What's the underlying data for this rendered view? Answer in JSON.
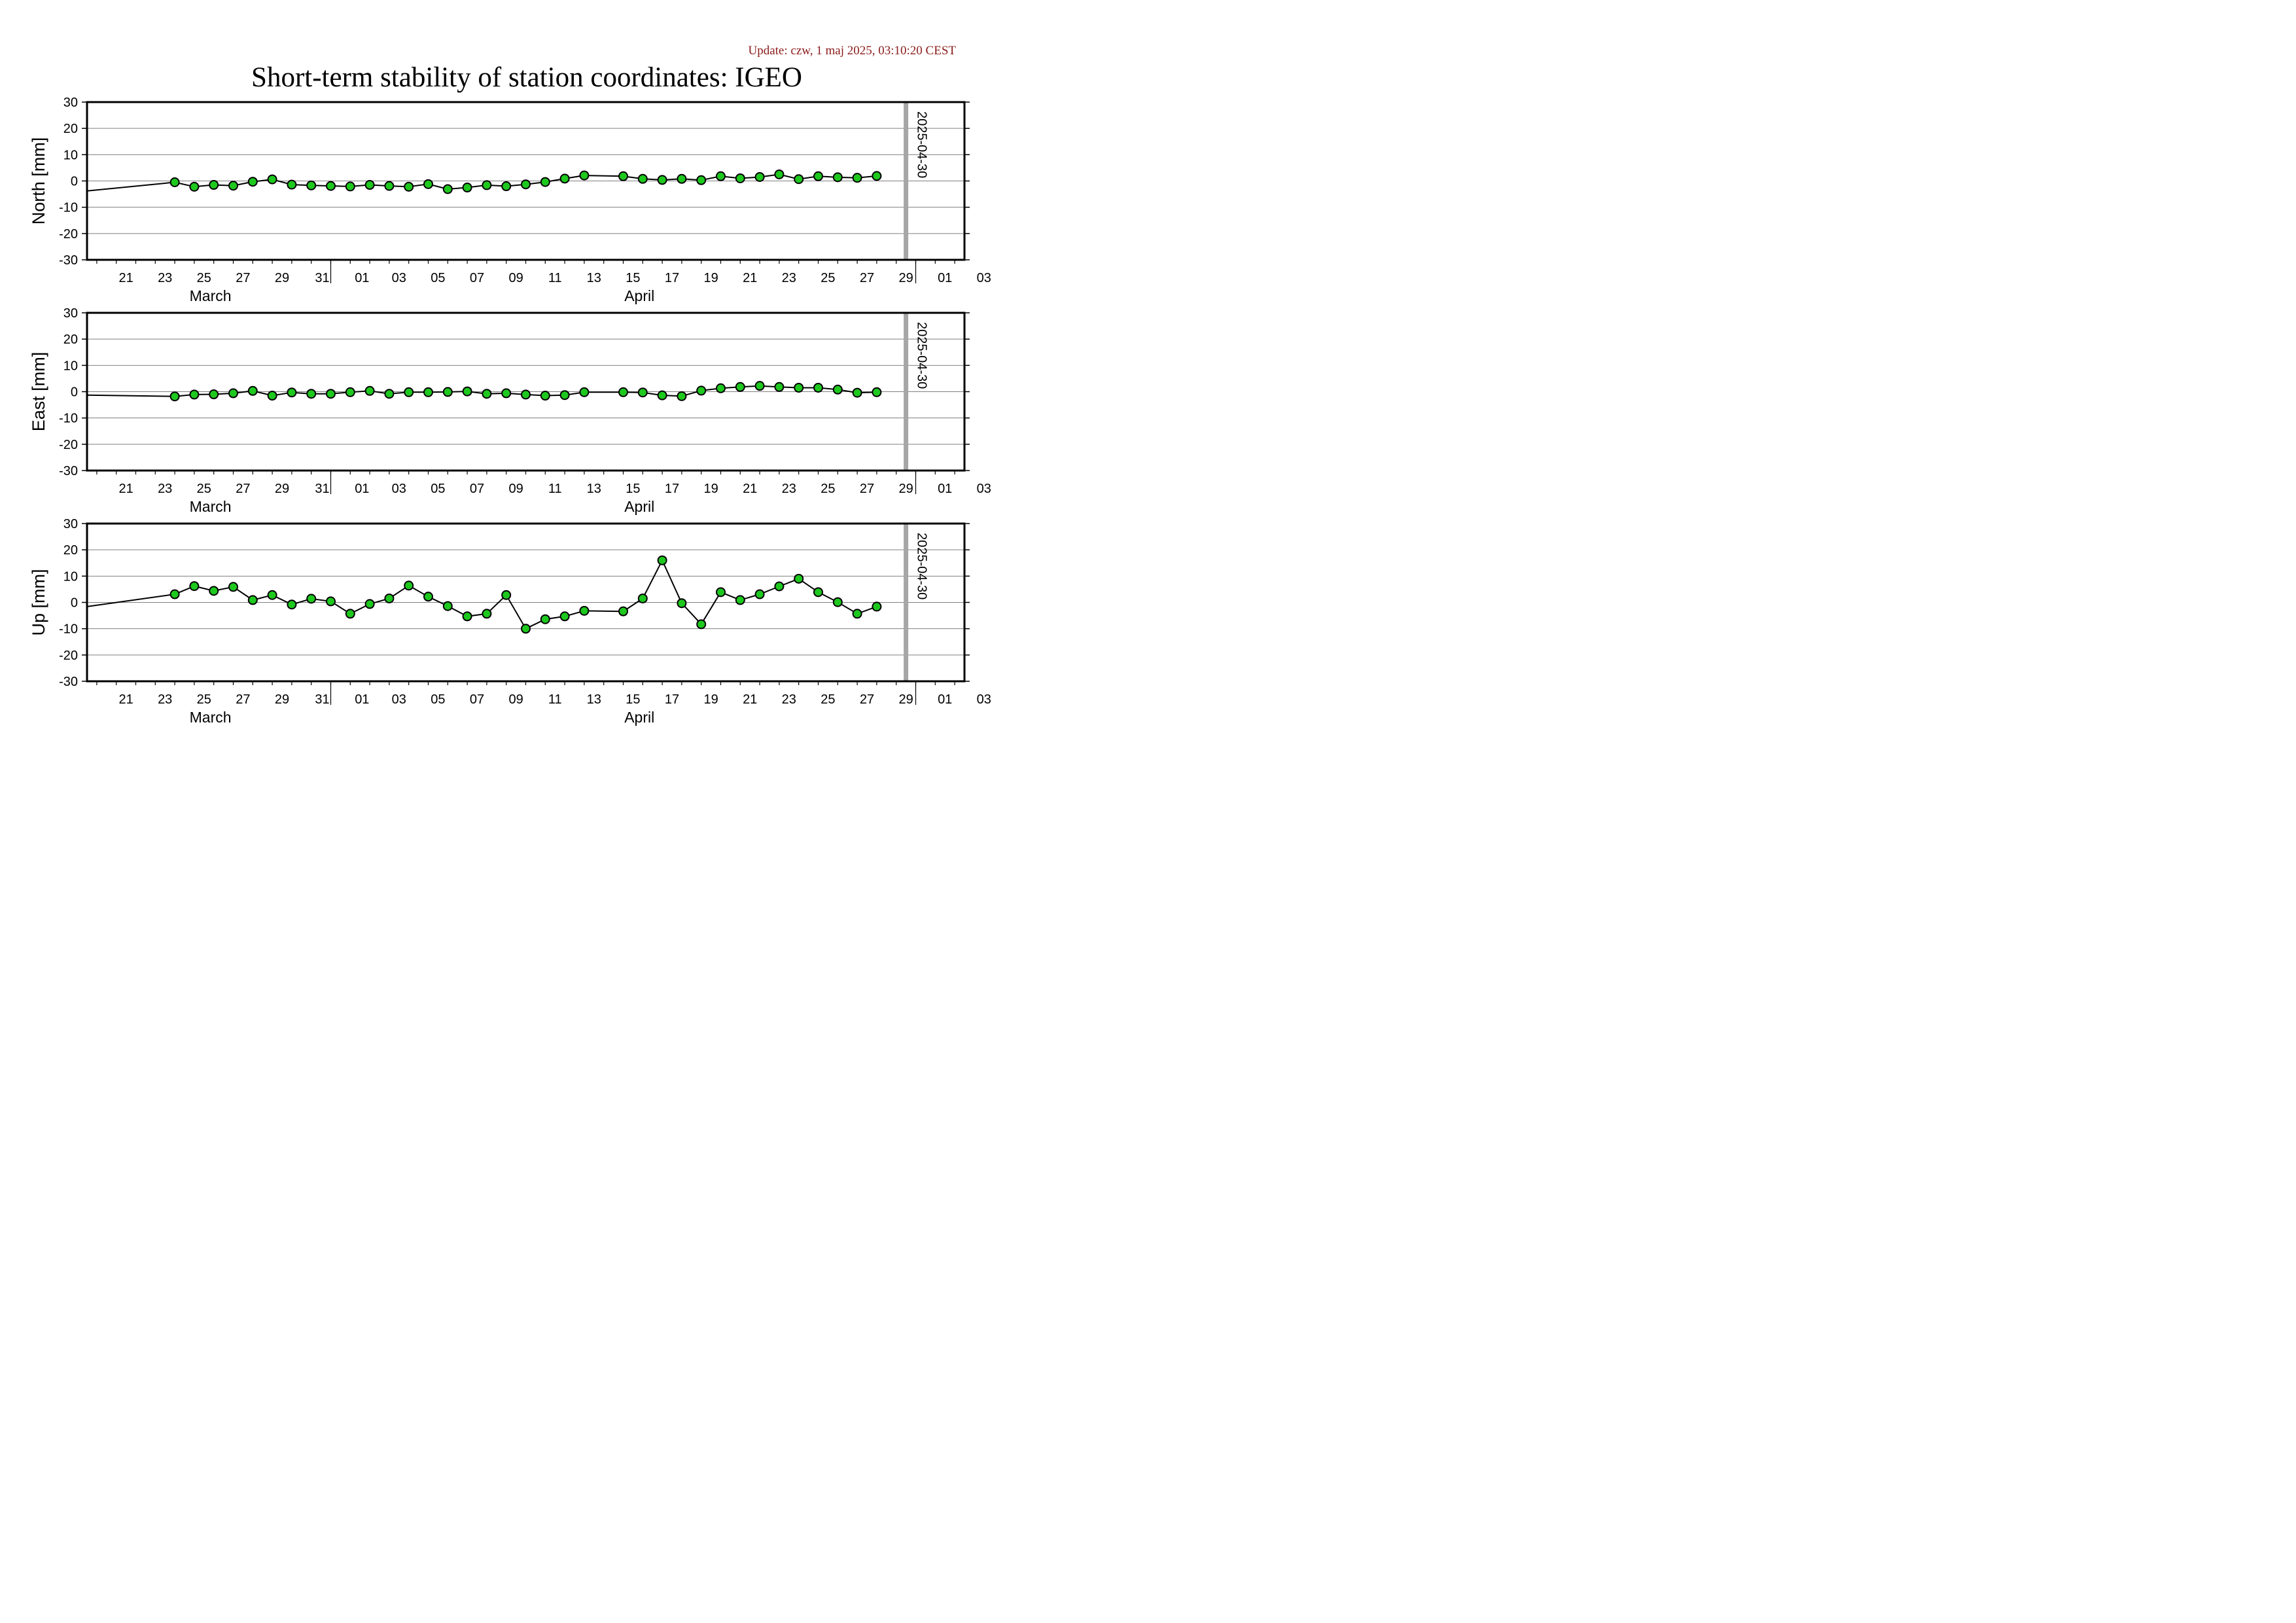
{
  "update_text": "Update: czw, 1 maj 2025, 03:10:20 CEST",
  "title": "Short-term stability of station coordinates: IGEO",
  "colors": {
    "marker_fill": "#1ec81e",
    "marker_stroke": "#000000",
    "line": "#000000",
    "gridline": "#7f7f7f",
    "date_marker": "#a6a6a6",
    "update_text": "#8b1a1a"
  },
  "chart_data": [
    {
      "type": "line",
      "name": "north",
      "ylabel": "North [mm]",
      "ylim": [
        -30,
        30
      ],
      "y_ticks": [
        30,
        20,
        10,
        0,
        -10,
        -20,
        -30
      ],
      "xlim": [
        "2025-03-19T12:00",
        "2025-05-03T12:00"
      ],
      "x_tick_labels": [
        "21",
        "23",
        "25",
        "27",
        "29",
        "31",
        "01",
        "03",
        "05",
        "07",
        "09",
        "11",
        "13",
        "15",
        "17",
        "19",
        "21",
        "23",
        "25",
        "27",
        "29",
        "01",
        "03"
      ],
      "month_labels": [
        "March",
        "April"
      ],
      "date_marker": "2025-04-30",
      "grid": true,
      "x": [
        "2025-03-19T12:00",
        "2025-03-24",
        "2025-03-25",
        "2025-03-26",
        "2025-03-27",
        "2025-03-28",
        "2025-03-29",
        "2025-03-30",
        "2025-03-31",
        "2025-04-01",
        "2025-04-02",
        "2025-04-03",
        "2025-04-04",
        "2025-04-05",
        "2025-04-06",
        "2025-04-07",
        "2025-04-08",
        "2025-04-09",
        "2025-04-10",
        "2025-04-11",
        "2025-04-12",
        "2025-04-13",
        "2025-04-14",
        "2025-04-16",
        "2025-04-17",
        "2025-04-18",
        "2025-04-19",
        "2025-04-20",
        "2025-04-21",
        "2025-04-22",
        "2025-04-23",
        "2025-04-24",
        "2025-04-25",
        "2025-04-26",
        "2025-04-27",
        "2025-04-28",
        "2025-04-29"
      ],
      "y": [
        -3.8,
        -0.5,
        -2.2,
        -1.5,
        -1.8,
        -0.3,
        0.6,
        -1.4,
        -1.7,
        -1.9,
        -2.1,
        -1.5,
        -1.9,
        -2.2,
        -1.2,
        -3.1,
        -2.5,
        -1.6,
        -2.0,
        -1.3,
        -0.4,
        0.9,
        2.1,
        1.8,
        0.8,
        0.4,
        0.8,
        0.3,
        1.8,
        1.0,
        1.5,
        2.5,
        0.7,
        1.8,
        1.4,
        1.2,
        1.9
      ]
    },
    {
      "type": "line",
      "name": "east",
      "ylabel": "East [mm]",
      "ylim": [
        -30,
        30
      ],
      "y_ticks": [
        30,
        20,
        10,
        0,
        -10,
        -20,
        -30
      ],
      "xlim": [
        "2025-03-19T12:00",
        "2025-05-03T12:00"
      ],
      "x_tick_labels": [
        "21",
        "23",
        "25",
        "27",
        "29",
        "31",
        "01",
        "03",
        "05",
        "07",
        "09",
        "11",
        "13",
        "15",
        "17",
        "19",
        "21",
        "23",
        "25",
        "27",
        "29",
        "01",
        "03"
      ],
      "month_labels": [
        "March",
        "April"
      ],
      "date_marker": "2025-04-30",
      "grid": true,
      "x": [
        "2025-03-19T12:00",
        "2025-03-24",
        "2025-03-25",
        "2025-03-26",
        "2025-03-27",
        "2025-03-28",
        "2025-03-29",
        "2025-03-30",
        "2025-03-31",
        "2025-04-01",
        "2025-04-02",
        "2025-04-03",
        "2025-04-04",
        "2025-04-05",
        "2025-04-06",
        "2025-04-07",
        "2025-04-08",
        "2025-04-09",
        "2025-04-10",
        "2025-04-11",
        "2025-04-12",
        "2025-04-13",
        "2025-04-14",
        "2025-04-16",
        "2025-04-17",
        "2025-04-18",
        "2025-04-19",
        "2025-04-20",
        "2025-04-21",
        "2025-04-22",
        "2025-04-23",
        "2025-04-24",
        "2025-04-25",
        "2025-04-26",
        "2025-04-27",
        "2025-04-28",
        "2025-04-29"
      ],
      "y": [
        -1.3,
        -1.8,
        -1.1,
        -1.0,
        -0.6,
        0.3,
        -1.5,
        -0.3,
        -0.8,
        -0.8,
        -0.2,
        0.3,
        -0.8,
        -0.2,
        -0.2,
        -0.1,
        0.1,
        -0.8,
        -0.6,
        -1.1,
        -1.5,
        -1.3,
        -0.2,
        -0.2,
        -0.3,
        -1.4,
        -1.7,
        0.4,
        1.3,
        1.8,
        2.2,
        1.8,
        1.5,
        1.5,
        0.8,
        -0.4,
        -0.2
      ]
    },
    {
      "type": "line",
      "name": "up",
      "ylabel": "Up [mm]",
      "ylim": [
        -30,
        30
      ],
      "y_ticks": [
        30,
        20,
        10,
        0,
        -10,
        -20,
        -30
      ],
      "xlim": [
        "2025-03-19T12:00",
        "2025-05-03T12:00"
      ],
      "x_tick_labels": [
        "21",
        "23",
        "25",
        "27",
        "29",
        "31",
        "01",
        "03",
        "05",
        "07",
        "09",
        "11",
        "13",
        "15",
        "17",
        "19",
        "21",
        "23",
        "25",
        "27",
        "29",
        "01",
        "03"
      ],
      "month_labels": [
        "March",
        "April"
      ],
      "date_marker": "2025-04-30",
      "grid": true,
      "x": [
        "2025-03-19T12:00",
        "2025-03-24",
        "2025-03-25",
        "2025-03-26",
        "2025-03-27",
        "2025-03-28",
        "2025-03-29",
        "2025-03-30",
        "2025-03-31",
        "2025-04-01",
        "2025-04-02",
        "2025-04-03",
        "2025-04-04",
        "2025-04-05",
        "2025-04-06",
        "2025-04-07",
        "2025-04-08",
        "2025-04-09",
        "2025-04-10",
        "2025-04-11",
        "2025-04-12",
        "2025-04-13",
        "2025-04-14",
        "2025-04-16",
        "2025-04-17",
        "2025-04-18",
        "2025-04-19",
        "2025-04-20",
        "2025-04-21",
        "2025-04-22",
        "2025-04-23",
        "2025-04-24",
        "2025-04-25",
        "2025-04-26",
        "2025-04-27",
        "2025-04-28",
        "2025-04-29"
      ],
      "y": [
        -1.6,
        3.1,
        6.2,
        4.4,
        5.9,
        0.9,
        2.8,
        -0.8,
        1.4,
        0.4,
        -4.3,
        -0.6,
        1.5,
        6.4,
        2.2,
        -1.4,
        -5.3,
        -4.3,
        2.8,
        -10.0,
        -6.4,
        -5.3,
        -3.2,
        -3.4,
        1.5,
        16.0,
        -0.3,
        -8.3,
        3.9,
        0.9,
        3.1,
        6.1,
        9.0,
        3.9,
        0.1,
        -4.3,
        -1.6
      ]
    }
  ]
}
